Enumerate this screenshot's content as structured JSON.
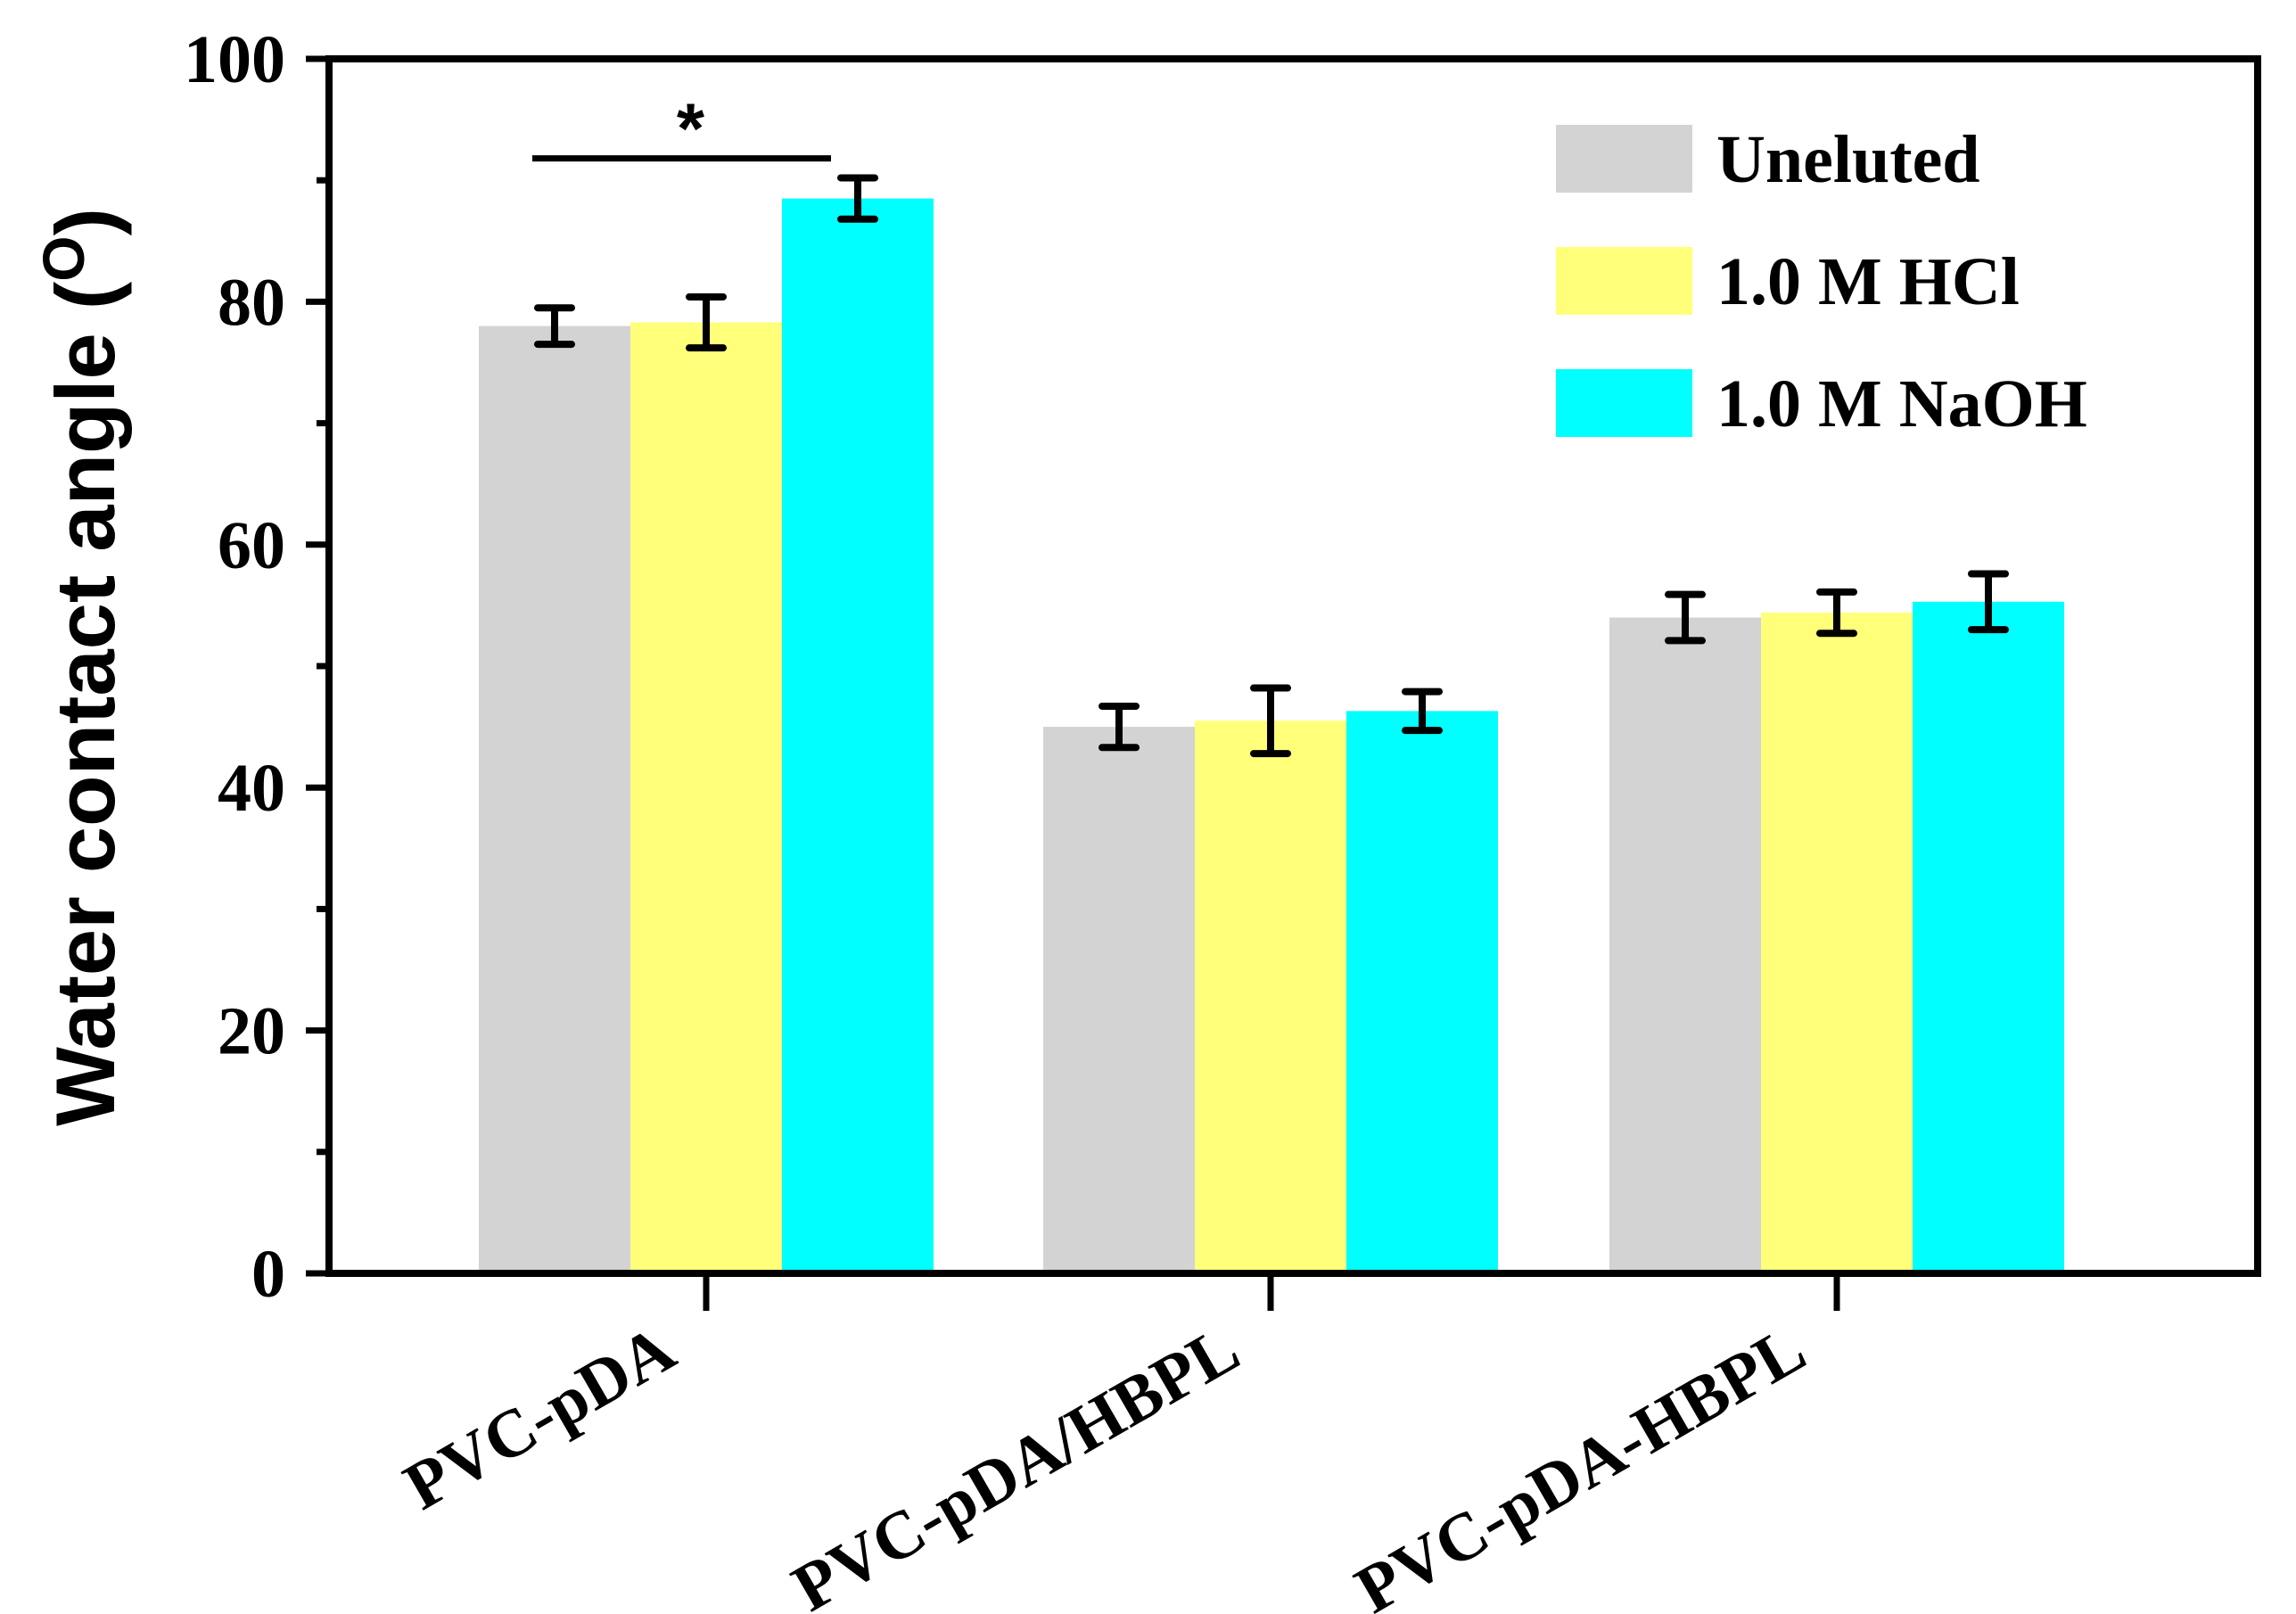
{
  "chart_data": {
    "type": "bar",
    "title": "",
    "xlabel": "",
    "ylabel": "Water contact angle (",
    "ylabel_superscript": "O",
    "ylabel_close": ")",
    "ylim": [
      0,
      100
    ],
    "yticks": [
      0,
      20,
      40,
      60,
      80,
      100
    ],
    "yminor_step": 10,
    "categories": [
      "PVC-pDA",
      "PVC-pDA/HBPL",
      "PVC-pDA-HBPL"
    ],
    "series": [
      {
        "name": "Uneluted",
        "color": "#d3d3d3",
        "values": [
          78.0,
          45.0,
          54.0
        ],
        "errors": [
          1.5,
          1.7,
          1.9
        ]
      },
      {
        "name": "1.0 M HCl",
        "color": "#ffff7a",
        "values": [
          78.3,
          45.5,
          54.4
        ],
        "errors": [
          2.1,
          2.7,
          1.7
        ]
      },
      {
        "name": "1.0 M NaOH",
        "color": "#00ffff",
        "values": [
          88.5,
          46.3,
          55.3
        ],
        "errors": [
          1.7,
          1.6,
          2.3
        ]
      }
    ],
    "annotations": [
      {
        "text": "*",
        "category_index": 0,
        "from_series": 0,
        "to_series": 2,
        "value": 91.8
      }
    ],
    "legend": "top-right",
    "grid": false
  }
}
